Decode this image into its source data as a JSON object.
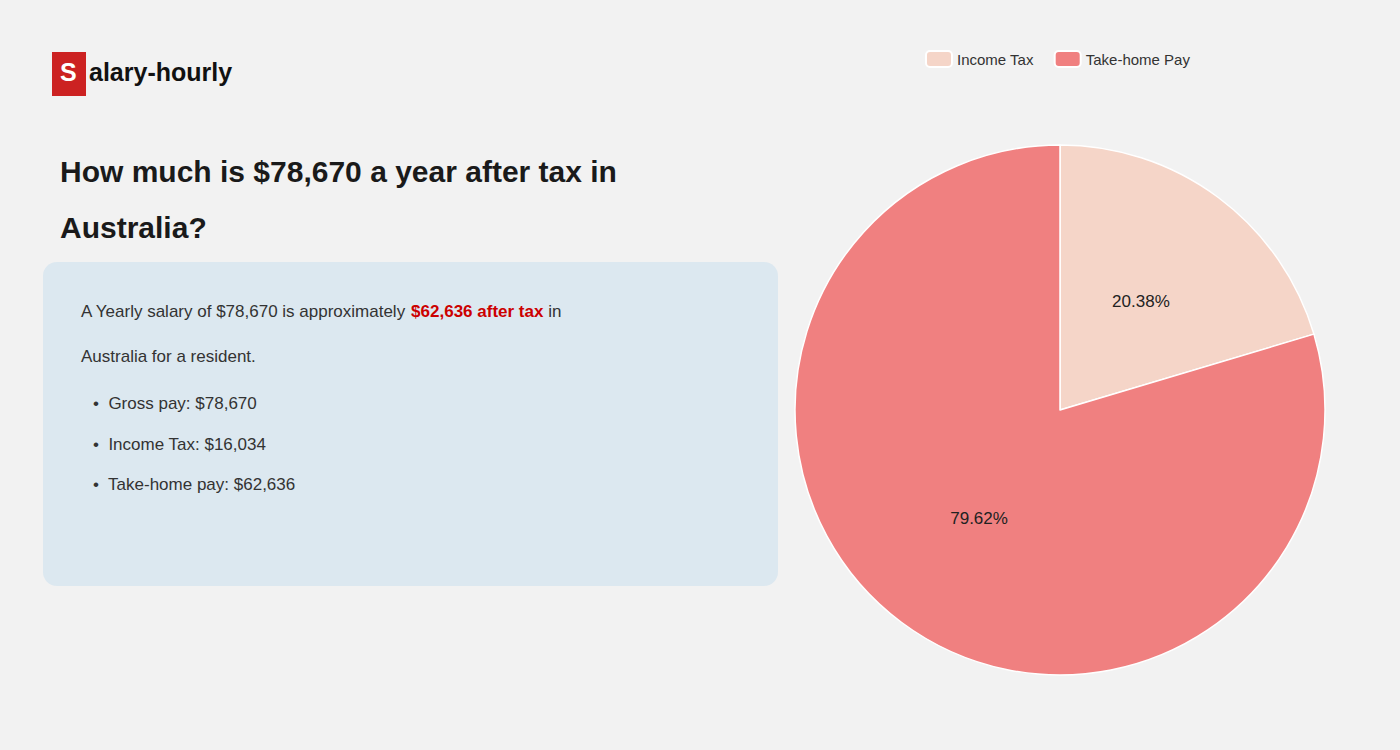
{
  "chart_data": {
    "type": "pie",
    "title": "How much is $78,670 a year after tax in\nAustralia?",
    "categories": [
      "Income Tax",
      "Take-home Pay"
    ],
    "values": [
      20.38,
      79.62
    ],
    "value_labels": [
      "20.38%",
      "79.62%"
    ],
    "colors": [
      "#f5d5c8",
      "#f08080"
    ],
    "data_labels": true,
    "legend": "top",
    "annotations": [
      "S",
      "alary-hourly",
      "A Yearly salary of $78,670 is approximately ",
      "$62,636 after tax",
      " in",
      "Australia for a resident.",
      "•  Gross pay: $78,670",
      "•  Income Tax: $16,034",
      "•  Take-home pay: $62,636"
    ]
  }
}
